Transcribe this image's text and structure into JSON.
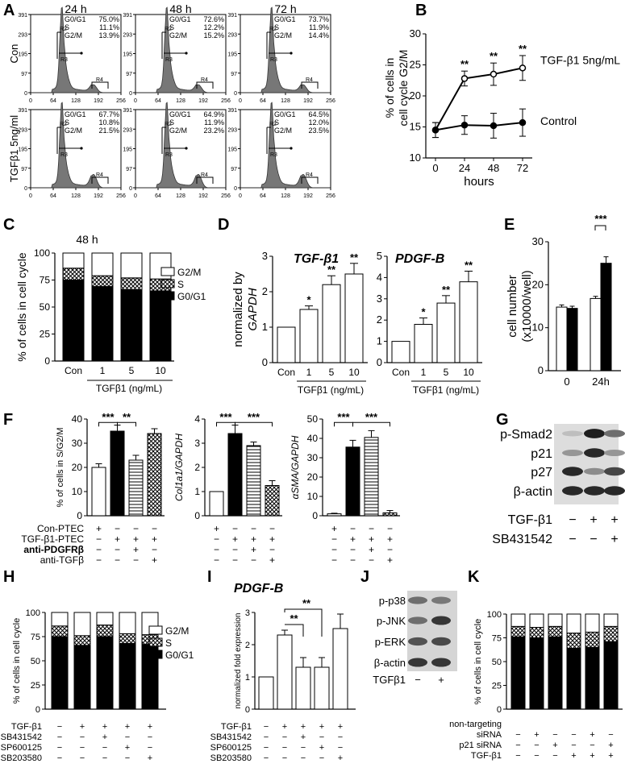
{
  "panel_letters": {
    "A": "A",
    "B": "B",
    "C": "C",
    "D": "D",
    "E": "E",
    "F": "F",
    "G": "G",
    "H": "H",
    "I": "I",
    "J": "J",
    "K": "K"
  },
  "panel_a": {
    "times": [
      "24 h",
      "48 h",
      "72 h"
    ],
    "row_labels": [
      "Con",
      "TGFβ1 5ng/ml"
    ],
    "x_ticks": [
      "0",
      "64",
      "128",
      "192",
      "256"
    ],
    "y_ticks": [
      "391",
      "293",
      "195",
      "97",
      "0"
    ],
    "region_labels": [
      "R2",
      "R3",
      "R4"
    ],
    "stats": [
      [
        [
          "G0/G1",
          "75.0%"
        ],
        [
          "S",
          "11.1%"
        ],
        [
          "G2/M",
          "13.9%"
        ]
      ],
      [
        [
          "G0/G1",
          "72.6%"
        ],
        [
          "S",
          "12.2%"
        ],
        [
          "G2/M",
          "15.2%"
        ]
      ],
      [
        [
          "G0/G1",
          "73.7%"
        ],
        [
          "S",
          "11.9%"
        ],
        [
          "G2/M",
          "14.4%"
        ]
      ],
      [
        [
          "G0/G1",
          "67.7%"
        ],
        [
          "S",
          "10.8%"
        ],
        [
          "G2/M",
          "21.5%"
        ]
      ],
      [
        [
          "G0/G1",
          "64.9%"
        ],
        [
          "S",
          "11.9%"
        ],
        [
          "G2/M",
          "23.2%"
        ]
      ],
      [
        [
          "G0/G1",
          "64.5%"
        ],
        [
          "S",
          "12.0%"
        ],
        [
          "G2/M",
          "23.5%"
        ]
      ]
    ]
  },
  "panel_f": {
    "labels": [
      "Con-PTEC",
      "TGF-β1-PTEC",
      "anti-PDGFRβ",
      "anti-TGFβ"
    ],
    "signs": [
      [
        "+",
        "−",
        "−",
        "−"
      ],
      [
        "−",
        "+",
        "+",
        "+"
      ],
      [
        "−",
        "−",
        "+",
        "−"
      ],
      [
        "−",
        "−",
        "−",
        "+"
      ]
    ],
    "sig_y1": [
      "***",
      "**"
    ],
    "sig_y2": [
      "***",
      "***"
    ],
    "sig_y3": [
      "***",
      "***"
    ]
  },
  "panel_g": {
    "bands": [
      "p-Smad2",
      "p21",
      "p27",
      "β-actin"
    ],
    "row_labels": [
      "TGF-β1",
      "SB431542"
    ],
    "signs": [
      [
        "−",
        "+",
        "+"
      ],
      [
        "−",
        "−",
        "+"
      ]
    ]
  },
  "panel_h": {
    "row_labels": [
      "TGF-β1",
      "SB431542",
      "SP600125",
      "SB203580"
    ],
    "signs": [
      [
        "−",
        "+",
        "+",
        "+",
        "+"
      ],
      [
        "−",
        "−",
        "+",
        "−",
        "−"
      ],
      [
        "−",
        "−",
        "−",
        "+",
        "−"
      ],
      [
        "−",
        "−",
        "−",
        "−",
        "+"
      ]
    ]
  },
  "panel_i": {
    "row_labels": [
      "TGF-β1",
      "SB431542",
      "SP600125",
      "SB203580"
    ],
    "signs": [
      [
        "−",
        "+",
        "+",
        "+",
        "+"
      ],
      [
        "−",
        "−",
        "+",
        "−",
        "−"
      ],
      [
        "−",
        "−",
        "−",
        "+",
        "−"
      ],
      [
        "−",
        "−",
        "−",
        "−",
        "+"
      ]
    ],
    "sig": [
      "**",
      "**"
    ]
  },
  "panel_j": {
    "bands": [
      "p-p38",
      "p-JNK",
      "p-ERK",
      "β-actin"
    ],
    "row_label": "TGFβ1",
    "signs": [
      "−",
      "+"
    ]
  },
  "panel_k": {
    "row_labels": [
      "non-targeting siRNA",
      "p21 siRNA",
      "TGF-β1"
    ],
    "signs": [
      [
        "−",
        "+",
        "−",
        "−",
        "+",
        "−"
      ],
      [
        "−",
        "−",
        "+",
        "−",
        "−",
        "+"
      ],
      [
        "−",
        "−",
        "−",
        "+",
        "+",
        "+"
      ]
    ]
  },
  "chart_data": [
    {
      "id": "B",
      "type": "line",
      "xlabel": "hours",
      "ylabel": "% of cells in cell cycle G2/M",
      "x": [
        0,
        24,
        48,
        72
      ],
      "ylim": [
        10,
        30
      ],
      "y_ticks": [
        10,
        15,
        20,
        25,
        30
      ],
      "series": [
        {
          "name": "TGF-β1 5ng/mL",
          "values": [
            14.5,
            22.8,
            23.5,
            24.5
          ],
          "errors": [
            1.2,
            1.2,
            1.8,
            2.0
          ]
        },
        {
          "name": "Control",
          "values": [
            14.5,
            15.3,
            15.2,
            15.7
          ],
          "errors": [
            1.2,
            1.5,
            2.0,
            2.2
          ]
        }
      ],
      "annotations": [
        "**",
        "**",
        "**"
      ]
    },
    {
      "id": "C",
      "type": "bar",
      "stacked": true,
      "title": "48 h",
      "ylabel": "% of cells in cell cycle",
      "xlabel": "TGFβ1 (ng/mL)",
      "categories": [
        "Con",
        "1",
        "5",
        "10"
      ],
      "ylim": [
        0,
        100
      ],
      "y_ticks": [
        0,
        25,
        50,
        75,
        100
      ],
      "series": [
        {
          "name": "G0/G1",
          "values": [
            75,
            69,
            66,
            65
          ]
        },
        {
          "name": "S",
          "values": [
            11,
            10,
            11,
            11
          ]
        },
        {
          "name": "G2/M",
          "values": [
            14,
            21,
            23,
            24
          ]
        }
      ],
      "legend": "right"
    },
    {
      "id": "D1",
      "type": "bar",
      "title": "TGF-β1",
      "ylabel": "normalized by GAPDH",
      "xlabel": "TGFβ1 (ng/mL)",
      "categories": [
        "Con",
        "1",
        "5",
        "10"
      ],
      "ylim": [
        0,
        3
      ],
      "y_ticks": [
        0,
        1,
        2,
        3
      ],
      "values": [
        1.0,
        1.5,
        2.2,
        2.5
      ],
      "errors": [
        0,
        0.1,
        0.25,
        0.3
      ],
      "annotations": [
        "",
        "*",
        "**",
        "**"
      ]
    },
    {
      "id": "D2",
      "type": "bar",
      "title": "PDGF-B",
      "xlabel": "TGFβ1 (ng/mL)",
      "categories": [
        "Con",
        "1",
        "5",
        "10"
      ],
      "ylim": [
        0,
        5
      ],
      "y_ticks": [
        0,
        1,
        2,
        3,
        4,
        5
      ],
      "values": [
        1.0,
        1.8,
        2.8,
        3.8
      ],
      "errors": [
        0,
        0.3,
        0.35,
        0.5
      ],
      "annotations": [
        "",
        "*",
        "**",
        "**"
      ]
    },
    {
      "id": "E",
      "type": "bar",
      "ylabel": "cell number (x10000/well)",
      "categories": [
        "0",
        "24h"
      ],
      "ylim": [
        0,
        30
      ],
      "y_ticks": [
        0,
        10,
        20,
        30
      ],
      "series": [
        {
          "name": "",
          "values": [
            14.8,
            16.8
          ],
          "errors": [
            0.5,
            0.5
          ]
        },
        {
          "name": "",
          "values": [
            14.5,
            25.0
          ],
          "errors": [
            0.5,
            1.5
          ]
        }
      ],
      "annotations": [
        "***"
      ]
    },
    {
      "id": "F1",
      "type": "bar",
      "ylabel": "% of cells in S/G2/M",
      "ylim": [
        0,
        40
      ],
      "y_ticks": [
        0,
        10,
        20,
        30,
        40
      ],
      "values": [
        20,
        35,
        23,
        34
      ],
      "errors": [
        1.5,
        2.5,
        2,
        2
      ]
    },
    {
      "id": "F2",
      "type": "bar",
      "ylabel": "Col1a1/GAPDH",
      "ylim": [
        0,
        4
      ],
      "y_ticks": [
        0,
        1,
        2,
        3,
        4
      ],
      "values": [
        1.0,
        3.4,
        2.9,
        1.25
      ],
      "errors": [
        0,
        0.35,
        0.15,
        0.2
      ]
    },
    {
      "id": "F3",
      "type": "bar",
      "ylabel": "αSMA/GAPDH",
      "ylim": [
        0,
        50
      ],
      "y_ticks": [
        0,
        10,
        20,
        30,
        40,
        50
      ],
      "values": [
        1.0,
        35.5,
        40.5,
        1.5
      ],
      "errors": [
        0.3,
        3.5,
        3.5,
        1.2
      ]
    },
    {
      "id": "H",
      "type": "bar",
      "stacked": true,
      "ylabel": "% of cells in cell cycle",
      "ylim": [
        0,
        100
      ],
      "y_ticks": [
        0,
        25,
        50,
        75,
        100
      ],
      "series": [
        {
          "name": "G0/G1",
          "values": [
            75,
            66,
            75,
            68,
            67
          ]
        },
        {
          "name": "S",
          "values": [
            11,
            10,
            12,
            10,
            10
          ]
        },
        {
          "name": "G2/M",
          "values": [
            14,
            24,
            13,
            22,
            23
          ]
        }
      ],
      "legend": "right"
    },
    {
      "id": "I",
      "type": "bar",
      "title": "PDGF-B",
      "ylabel": "normalized fold expression",
      "ylim": [
        0,
        3
      ],
      "y_ticks": [
        0,
        1,
        2,
        3
      ],
      "values": [
        1.0,
        2.3,
        1.3,
        1.3,
        2.5
      ],
      "errors": [
        0,
        0.15,
        0.3,
        0.3,
        0.45
      ]
    },
    {
      "id": "K",
      "type": "bar",
      "stacked": true,
      "ylabel": "% of cells in cell cycle",
      "ylim": [
        0,
        100
      ],
      "y_ticks": [
        0,
        25,
        50,
        75,
        100
      ],
      "series": [
        {
          "name": "G0/G1",
          "values": [
            76,
            75,
            76,
            64,
            65,
            71
          ]
        },
        {
          "name": "S",
          "values": [
            11,
            11,
            11,
            16,
            16,
            16
          ]
        },
        {
          "name": "G2/M",
          "values": [
            13,
            14,
            13,
            20,
            19,
            13
          ]
        }
      ]
    }
  ]
}
